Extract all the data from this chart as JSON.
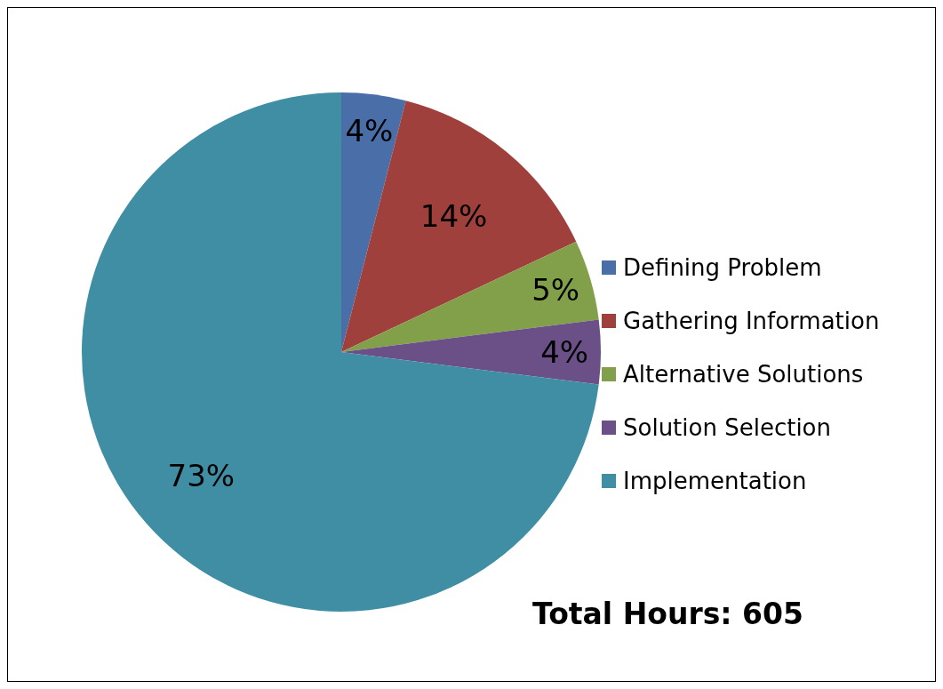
{
  "chart_data": {
    "type": "pie",
    "categories": [
      "Defining Problem",
      "Gathering Information",
      "Alternative Solutions",
      "Solution Selection",
      "Implementation"
    ],
    "values": [
      4,
      14,
      5,
      4,
      73
    ],
    "value_labels": [
      "4%",
      "14%",
      "5%",
      "4%",
      "73%"
    ],
    "colors": [
      "#4a6fa8",
      "#a0403d",
      "#82a04a",
      "#6a5087",
      "#3f8ea4"
    ],
    "legend": "right",
    "annotations": [
      "Total Hours: 605"
    ]
  }
}
